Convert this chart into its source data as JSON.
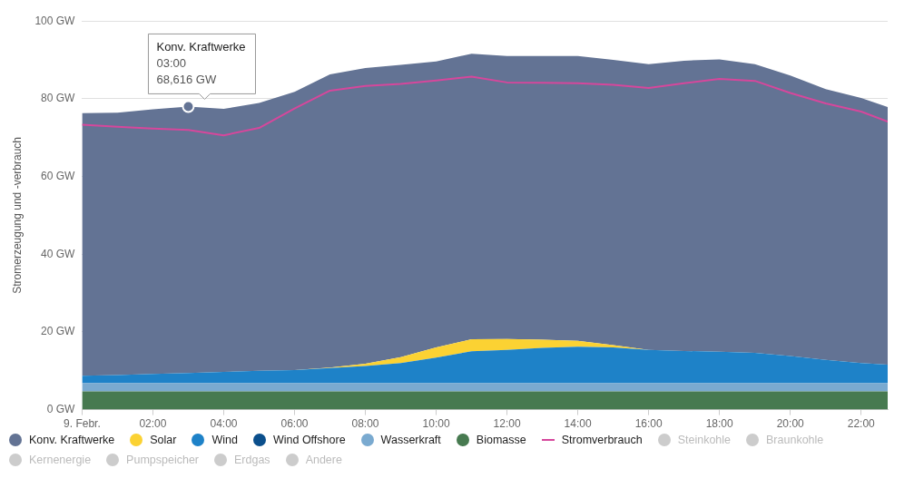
{
  "chart_data": {
    "type": "area",
    "ylabel": "Stromerzeugung und -verbrauch",
    "x": [
      0,
      1,
      2,
      3,
      4,
      5,
      6,
      7,
      8,
      9,
      10,
      11,
      12,
      13,
      14,
      15,
      16,
      17,
      18,
      19,
      20,
      21,
      22,
      22.75
    ],
    "xlim": [
      0,
      22.75
    ],
    "xticks": [
      {
        "value": 0,
        "label": "9. Febr."
      },
      {
        "value": 2,
        "label": "02:00"
      },
      {
        "value": 4,
        "label": "04:00"
      },
      {
        "value": 6,
        "label": "06:00"
      },
      {
        "value": 8,
        "label": "08:00"
      },
      {
        "value": 10,
        "label": "10:00"
      },
      {
        "value": 12,
        "label": "12:00"
      },
      {
        "value": 14,
        "label": "14:00"
      },
      {
        "value": 16,
        "label": "16:00"
      },
      {
        "value": 18,
        "label": "18:00"
      },
      {
        "value": 20,
        "label": "20:00"
      },
      {
        "value": 22,
        "label": "22:00"
      }
    ],
    "ylim": [
      0,
      100
    ],
    "yticks": [
      {
        "value": 0,
        "label": "0 GW"
      },
      {
        "value": 20,
        "label": "20 GW"
      },
      {
        "value": 40,
        "label": "40 GW"
      },
      {
        "value": 60,
        "label": "60 GW"
      },
      {
        "value": 80,
        "label": "80 GW"
      },
      {
        "value": 100,
        "label": "100 GW"
      }
    ],
    "stacked": true,
    "grid": "y",
    "legend": "bottom",
    "annotations": [
      {
        "text": "Konv. Kraftwerke\n03:00\n68,616 GW",
        "x": 3,
        "y": 78.0
      }
    ],
    "series": [
      {
        "name": "Biomasse",
        "color": "#477a50",
        "values": [
          4.7,
          4.7,
          4.7,
          4.7,
          4.7,
          4.7,
          4.7,
          4.7,
          4.7,
          4.7,
          4.7,
          4.7,
          4.7,
          4.7,
          4.7,
          4.7,
          4.7,
          4.7,
          4.7,
          4.7,
          4.7,
          4.7,
          4.7,
          4.7
        ]
      },
      {
        "name": "Wasserkraft",
        "color": "#7aaad0",
        "values": [
          2.1,
          2.1,
          2.1,
          2.1,
          2.1,
          2.1,
          2.1,
          2.1,
          2.1,
          2.1,
          2.1,
          2.1,
          2.1,
          2.1,
          2.1,
          2.1,
          2.1,
          2.1,
          2.1,
          2.1,
          2.1,
          2.1,
          2.1,
          2.1
        ]
      },
      {
        "name": "Wind Offshore",
        "color": "#0b4f8c",
        "values": [
          null,
          null,
          null,
          null,
          null,
          null,
          null,
          null,
          null,
          null,
          null,
          null,
          null,
          null,
          null,
          null,
          null,
          null,
          null,
          null,
          null,
          null,
          null,
          null
        ]
      },
      {
        "name": "Wind",
        "color": "#1e82c8",
        "values": [
          1.9,
          2.1,
          2.4,
          2.6,
          2.9,
          3.2,
          3.4,
          3.9,
          4.4,
          5.2,
          6.6,
          8.2,
          8.6,
          9.1,
          9.4,
          9.2,
          8.6,
          8.3,
          8.1,
          7.8,
          7.0,
          6.0,
          5.2,
          4.8
        ]
      },
      {
        "name": "Solar",
        "color": "#fbd233",
        "values": [
          0,
          0,
          0,
          0,
          0,
          0,
          0,
          0.1,
          0.6,
          1.5,
          2.6,
          3.1,
          2.8,
          2.1,
          1.5,
          0.6,
          0,
          0,
          0,
          0,
          0,
          0,
          0,
          0
        ]
      },
      {
        "name": "Konv. Kraftwerke",
        "color": "#637394",
        "values": [
          67.6,
          67.5,
          68.1,
          68.616,
          67.7,
          68.9,
          71.6,
          75.5,
          76.1,
          75.2,
          73.6,
          73.5,
          72.8,
          73.0,
          73.3,
          73.4,
          73.5,
          74.7,
          75.2,
          74.3,
          72.2,
          69.7,
          68.2,
          66.3
        ]
      },
      {
        "name": "Stromverbrauch",
        "type": "line",
        "color": "#d6479c",
        "values": [
          73.3,
          72.8,
          72.3,
          72.0,
          70.6,
          72.5,
          77.5,
          82.1,
          83.3,
          83.8,
          84.7,
          85.7,
          84.2,
          84.1,
          84.0,
          83.6,
          82.8,
          84.0,
          85.1,
          84.6,
          81.5,
          78.8,
          76.7,
          74.1
        ]
      },
      {
        "name": "Steinkohle",
        "type": "line",
        "color": "#cccccc",
        "values": [
          null,
          null,
          null,
          null,
          null,
          null,
          null,
          null,
          null,
          null,
          null,
          null,
          null,
          null,
          null,
          null,
          null,
          null,
          null,
          null,
          null,
          null,
          null,
          null
        ]
      },
      {
        "name": "Braunkohle",
        "type": "line",
        "color": "#cccccc",
        "values": [
          null,
          null,
          null,
          null,
          null,
          null,
          null,
          null,
          null,
          null,
          null,
          null,
          null,
          null,
          null,
          null,
          null,
          null,
          null,
          null,
          null,
          null,
          null,
          null
        ]
      },
      {
        "name": "Kernenergie",
        "type": "line",
        "color": "#cccccc",
        "values": [
          null,
          null,
          null,
          null,
          null,
          null,
          null,
          null,
          null,
          null,
          null,
          null,
          null,
          null,
          null,
          null,
          null,
          null,
          null,
          null,
          null,
          null,
          null,
          null
        ]
      },
      {
        "name": "Pumpspeicher",
        "type": "line",
        "color": "#cccccc",
        "values": [
          null,
          null,
          null,
          null,
          null,
          null,
          null,
          null,
          null,
          null,
          null,
          null,
          null,
          null,
          null,
          null,
          null,
          null,
          null,
          null,
          null,
          null,
          null,
          null
        ]
      },
      {
        "name": "Erdgas",
        "type": "line",
        "color": "#cccccc",
        "values": [
          null,
          null,
          null,
          null,
          null,
          null,
          null,
          null,
          null,
          null,
          null,
          null,
          null,
          null,
          null,
          null,
          null,
          null,
          null,
          null,
          null,
          null,
          null,
          null
        ]
      },
      {
        "name": "Andere",
        "type": "line",
        "color": "#cccccc",
        "values": [
          null,
          null,
          null,
          null,
          null,
          null,
          null,
          null,
          null,
          null,
          null,
          null,
          null,
          null,
          null,
          null,
          null,
          null,
          null,
          null,
          null,
          null,
          null,
          null
        ]
      }
    ]
  }
}
